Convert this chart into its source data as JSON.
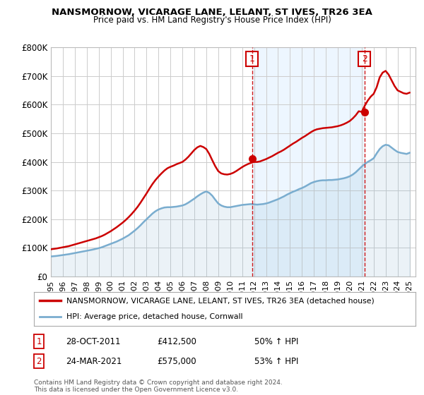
{
  "title": "NANSMORNOW, VICARAGE LANE, LELANT, ST IVES, TR26 3EA",
  "subtitle": "Price paid vs. HM Land Registry's House Price Index (HPI)",
  "ylim": [
    0,
    800000
  ],
  "xlim_start": 1995.0,
  "xlim_end": 2025.5,
  "legend_house": "NANSMORNOW, VICARAGE LANE, LELANT, ST IVES, TR26 3EA (detached house)",
  "legend_hpi": "HPI: Average price, detached house, Cornwall",
  "transaction1_date": "28-OCT-2011",
  "transaction1_price": "£412,500",
  "transaction1_hpi": "50% ↑ HPI",
  "transaction1_x": 2011.83,
  "transaction1_y": 412500,
  "transaction2_date": "24-MAR-2021",
  "transaction2_price": "£575,000",
  "transaction2_hpi": "53% ↑ HPI",
  "transaction2_x": 2021.23,
  "transaction2_y": 575000,
  "footnote": "Contains HM Land Registry data © Crown copyright and database right 2024.\nThis data is licensed under the Open Government Licence v3.0.",
  "red_color": "#cc0000",
  "blue_color": "#7aadcf",
  "blue_fill": "#cce0f0",
  "background_color": "#ffffff",
  "grid_color": "#cccccc",
  "years_hpi": [
    1995.0,
    1995.25,
    1995.5,
    1995.75,
    1996.0,
    1996.25,
    1996.5,
    1996.75,
    1997.0,
    1997.25,
    1997.5,
    1997.75,
    1998.0,
    1998.25,
    1998.5,
    1998.75,
    1999.0,
    1999.25,
    1999.5,
    1999.75,
    2000.0,
    2000.25,
    2000.5,
    2000.75,
    2001.0,
    2001.25,
    2001.5,
    2001.75,
    2002.0,
    2002.25,
    2002.5,
    2002.75,
    2003.0,
    2003.25,
    2003.5,
    2003.75,
    2004.0,
    2004.25,
    2004.5,
    2004.75,
    2005.0,
    2005.25,
    2005.5,
    2005.75,
    2006.0,
    2006.25,
    2006.5,
    2006.75,
    2007.0,
    2007.25,
    2007.5,
    2007.75,
    2008.0,
    2008.25,
    2008.5,
    2008.75,
    2009.0,
    2009.25,
    2009.5,
    2009.75,
    2010.0,
    2010.25,
    2010.5,
    2010.75,
    2011.0,
    2011.25,
    2011.5,
    2011.75,
    2012.0,
    2012.25,
    2012.5,
    2012.75,
    2013.0,
    2013.25,
    2013.5,
    2013.75,
    2014.0,
    2014.25,
    2014.5,
    2014.75,
    2015.0,
    2015.25,
    2015.5,
    2015.75,
    2016.0,
    2016.25,
    2016.5,
    2016.75,
    2017.0,
    2017.25,
    2017.5,
    2017.75,
    2018.0,
    2018.25,
    2018.5,
    2018.75,
    2019.0,
    2019.25,
    2019.5,
    2019.75,
    2020.0,
    2020.25,
    2020.5,
    2020.75,
    2021.0,
    2021.25,
    2021.5,
    2021.75,
    2022.0,
    2022.25,
    2022.5,
    2022.75,
    2023.0,
    2023.25,
    2023.5,
    2023.75,
    2024.0,
    2024.25,
    2024.5,
    2024.75,
    2025.0
  ],
  "hpi_values": [
    70000,
    71000,
    72000,
    73500,
    75000,
    76500,
    78000,
    80000,
    82000,
    84000,
    86000,
    88000,
    90000,
    92000,
    94000,
    96500,
    99000,
    102000,
    106000,
    110000,
    114000,
    118000,
    122000,
    127000,
    132000,
    138000,
    144000,
    152000,
    160000,
    169000,
    179000,
    190000,
    200000,
    210000,
    220000,
    228000,
    234000,
    238000,
    241000,
    242000,
    242000,
    243000,
    244000,
    246000,
    248000,
    252000,
    258000,
    265000,
    272000,
    280000,
    287000,
    293000,
    297000,
    292000,
    282000,
    268000,
    255000,
    248000,
    244000,
    242000,
    242000,
    244000,
    246000,
    248000,
    250000,
    251000,
    252000,
    253000,
    252000,
    251000,
    252000,
    253000,
    255000,
    258000,
    262000,
    266000,
    270000,
    275000,
    280000,
    286000,
    291000,
    296000,
    300000,
    305000,
    309000,
    314000,
    320000,
    326000,
    330000,
    333000,
    335000,
    336000,
    336000,
    337000,
    337000,
    338000,
    339000,
    341000,
    343000,
    346000,
    350000,
    356000,
    364000,
    374000,
    384000,
    393000,
    400000,
    406000,
    413000,
    430000,
    445000,
    455000,
    460000,
    458000,
    450000,
    442000,
    435000,
    432000,
    430000,
    428000,
    432000
  ],
  "red_values": [
    95000,
    96500,
    98000,
    100000,
    102000,
    104000,
    106000,
    109000,
    112000,
    115000,
    118000,
    121000,
    124000,
    127000,
    130000,
    133000,
    137000,
    141000,
    146000,
    152000,
    158000,
    165000,
    172000,
    180000,
    188000,
    197000,
    207000,
    218000,
    230000,
    243000,
    258000,
    274000,
    290000,
    307000,
    323000,
    337000,
    349000,
    360000,
    370000,
    378000,
    383000,
    387000,
    392000,
    396000,
    400000,
    408000,
    418000,
    430000,
    442000,
    451000,
    456000,
    452000,
    445000,
    428000,
    406000,
    385000,
    368000,
    360000,
    357000,
    356000,
    358000,
    362000,
    368000,
    375000,
    382000,
    388000,
    393000,
    397000,
    400000,
    400000,
    402000,
    406000,
    410000,
    415000,
    420000,
    426000,
    432000,
    437000,
    443000,
    450000,
    457000,
    464000,
    470000,
    477000,
    484000,
    490000,
    497000,
    504000,
    510000,
    514000,
    516000,
    518000,
    519000,
    520000,
    521000,
    523000,
    525000,
    528000,
    532000,
    537000,
    543000,
    552000,
    563000,
    577000,
    575000,
    596000,
    614000,
    628000,
    638000,
    661000,
    695000,
    712000,
    718000,
    705000,
    685000,
    665000,
    650000,
    645000,
    640000,
    638000,
    642000
  ]
}
